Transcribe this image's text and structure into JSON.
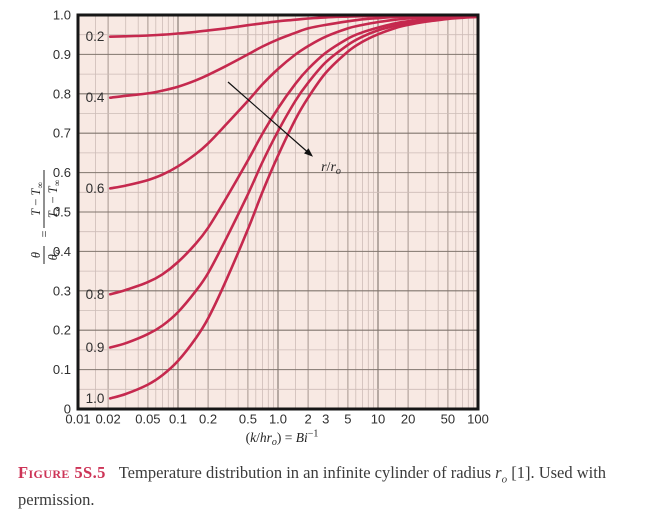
{
  "caption": {
    "label": "Figure 5S.5",
    "text_before": "Temperature distribution in an infinite cylinder of radius ",
    "radius_symbol": "r",
    "radius_sub": "o",
    "text_after": " [1]. Used with",
    "line2": "permission."
  },
  "chart_data": {
    "type": "line",
    "description": "Heisler chart: centerline-normalized temperature distribution in an infinite cylinder vs inverse Biot number, one curve per radial position r/ro",
    "x_axis": {
      "scale": "log",
      "min": 0.01,
      "max": 100,
      "ticks": [
        {
          "v": 0.01,
          "label": "0.01"
        },
        {
          "v": 0.02,
          "label": "0.02"
        },
        {
          "v": 0.05,
          "label": "0.05"
        },
        {
          "v": 0.1,
          "label": "0.1"
        },
        {
          "v": 0.2,
          "label": "0.2"
        },
        {
          "v": 0.5,
          "label": "0.5"
        },
        {
          "v": 1.0,
          "label": "1.0"
        },
        {
          "v": 2,
          "label": "2"
        },
        {
          "v": 3,
          "label": "3"
        },
        {
          "v": 5,
          "label": "5"
        },
        {
          "v": 10,
          "label": "10"
        },
        {
          "v": 20,
          "label": "20"
        },
        {
          "v": 50,
          "label": "50"
        },
        {
          "v": 100,
          "label": "100"
        }
      ],
      "label_parts": [
        {
          "t": "("
        },
        {
          "t": "k",
          "i": 1
        },
        {
          "t": "/"
        },
        {
          "t": "hr",
          "i": 1
        },
        {
          "t": "o",
          "i": 1,
          "sub": 1
        },
        {
          "t": ") = "
        },
        {
          "t": "Bi",
          "i": 1
        },
        {
          "t": "−1",
          "sup": 1
        }
      ]
    },
    "y_axis": {
      "scale": "linear",
      "min": 0,
      "max": 1.0,
      "minor_step": 0.05,
      "ticks": [
        {
          "v": 1.0,
          "label": "1.0"
        },
        {
          "v": 0.9,
          "label": "0.9"
        },
        {
          "v": 0.8,
          "label": "0.8"
        },
        {
          "v": 0.7,
          "label": "0.7"
        },
        {
          "v": 0.6,
          "label": "0.6"
        },
        {
          "v": 0.5,
          "label": "0.5"
        },
        {
          "v": 0.4,
          "label": "0.4"
        },
        {
          "v": 0.3,
          "label": "0.3"
        },
        {
          "v": 0.2,
          "label": "0.2"
        },
        {
          "v": 0.1,
          "label": "0.1"
        },
        {
          "v": 0,
          "label": "0"
        }
      ],
      "label": {
        "lhs_num": [
          {
            "t": "θ",
            "i": 1
          }
        ],
        "lhs_den": [
          {
            "t": "θ",
            "i": 1
          },
          {
            "t": "o",
            "i": 1,
            "sub": 1
          }
        ],
        "equals": "=",
        "rhs_num": [
          {
            "t": "T",
            "i": 1
          },
          {
            "t": " − "
          },
          {
            "t": "T",
            "i": 1
          },
          {
            "t": "∞",
            "sub": 1
          }
        ],
        "rhs_den": [
          {
            "t": "T",
            "i": 1
          },
          {
            "t": "o",
            "i": 1,
            "sub": 1
          },
          {
            "t": " − "
          },
          {
            "t": "T",
            "i": 1
          },
          {
            "t": "∞",
            "sub": 1
          }
        ]
      }
    },
    "x_samples": [
      0.021,
      0.03,
      0.05,
      0.07,
      0.1,
      0.15,
      0.2,
      0.3,
      0.5,
      0.7,
      1,
      1.5,
      2,
      3,
      5,
      7,
      10,
      15,
      20,
      30,
      50,
      70,
      100
    ],
    "series": [
      {
        "name": "r/ro = 0.2",
        "label": "0.2",
        "values": [
          0.945,
          0.946,
          0.948,
          0.95,
          0.953,
          0.957,
          0.961,
          0.966,
          0.974,
          0.979,
          0.984,
          0.988,
          0.991,
          0.994,
          0.996,
          0.997,
          0.998,
          0.999,
          0.999,
          0.999,
          1.0,
          1.0,
          1.0
        ]
      },
      {
        "name": "r/ro = 0.4",
        "label": "0.4",
        "values": [
          0.79,
          0.795,
          0.801,
          0.808,
          0.818,
          0.834,
          0.848,
          0.87,
          0.9,
          0.92,
          0.938,
          0.955,
          0.966,
          0.975,
          0.984,
          0.989,
          0.992,
          0.995,
          0.996,
          0.997,
          0.998,
          0.999,
          0.999
        ]
      },
      {
        "name": "r/ro = 0.6",
        "label": "0.6",
        "values": [
          0.56,
          0.567,
          0.581,
          0.595,
          0.616,
          0.647,
          0.674,
          0.721,
          0.782,
          0.824,
          0.863,
          0.9,
          0.921,
          0.945,
          0.966,
          0.975,
          0.982,
          0.988,
          0.991,
          0.994,
          0.996,
          0.998,
          0.998
        ]
      },
      {
        "name": "r/ro = 0.8",
        "label": "0.8",
        "values": [
          0.291,
          0.302,
          0.322,
          0.342,
          0.373,
          0.419,
          0.46,
          0.533,
          0.631,
          0.699,
          0.763,
          0.826,
          0.863,
          0.904,
          0.94,
          0.956,
          0.968,
          0.979,
          0.984,
          0.989,
          0.994,
          0.996,
          0.997
        ]
      },
      {
        "name": "r/ro = 0.9",
        "label": "0.9",
        "values": [
          0.156,
          0.167,
          0.19,
          0.212,
          0.246,
          0.299,
          0.345,
          0.43,
          0.545,
          0.627,
          0.705,
          0.783,
          0.828,
          0.88,
          0.924,
          0.945,
          0.961,
          0.973,
          0.98,
          0.986,
          0.992,
          0.995,
          0.996
        ]
      },
      {
        "name": "r/ro = 1.0",
        "label": "1.0",
        "values": [
          0.027,
          0.038,
          0.062,
          0.086,
          0.122,
          0.179,
          0.23,
          0.324,
          0.456,
          0.551,
          0.643,
          0.736,
          0.79,
          0.853,
          0.907,
          0.932,
          0.951,
          0.967,
          0.975,
          0.983,
          0.99,
          0.993,
          0.995
        ]
      }
    ],
    "annotation": {
      "label_parts": [
        {
          "t": "r",
          "i": 1
        },
        {
          "t": "/"
        },
        {
          "t": "r",
          "i": 1
        },
        {
          "t": "o",
          "i": 1,
          "sub": 1
        }
      ],
      "arrow_from": [
        0.316,
        0.83
      ],
      "arrow_to": [
        2.24,
        0.64
      ],
      "label_at": [
        2.7,
        0.604
      ]
    },
    "colors": {
      "curve": "#c5294e",
      "plot_bg": "#f8e9e3",
      "grid_minor": "#cdbcb7",
      "grid_medium": "#a5968f",
      "grid_major": "#80756e",
      "border": "#161616",
      "text": "#2f2f2f",
      "figure_label": "#cd3457"
    },
    "legend": "none",
    "grid": true
  }
}
